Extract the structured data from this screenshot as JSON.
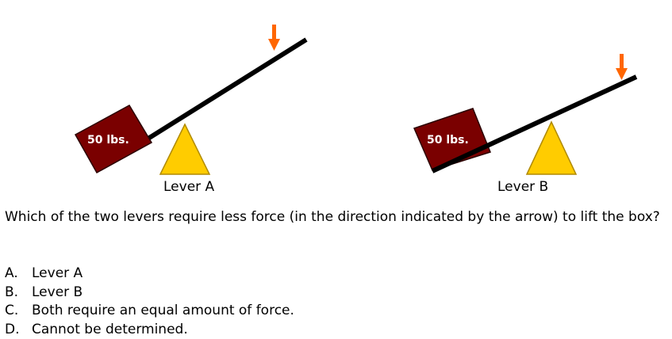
{
  "levers": [
    {
      "caption": "Lever A",
      "weight_label": "50 lbs.",
      "fulcrum_position": "middle of the plank, load near left end",
      "arrow_position": "near right end"
    },
    {
      "caption": "Lever B",
      "weight_label": "50 lbs.",
      "fulcrum_position": "right of center",
      "arrow_position": "at right end"
    }
  ],
  "question": "Which of the two levers require less force (in the direction indicated by the arrow) to lift the box?",
  "choices": [
    {
      "letter": "A.",
      "text": "Lever A"
    },
    {
      "letter": "B.",
      "text": "Lever B"
    },
    {
      "letter": "C.",
      "text": "Both require an equal amount of force."
    },
    {
      "letter": "D.",
      "text": "Cannot be determined."
    }
  ],
  "colors": {
    "box": "#7a0000",
    "fulcrum": "#ffcc00",
    "arrow": "#ff6600",
    "plank": "#000000"
  }
}
